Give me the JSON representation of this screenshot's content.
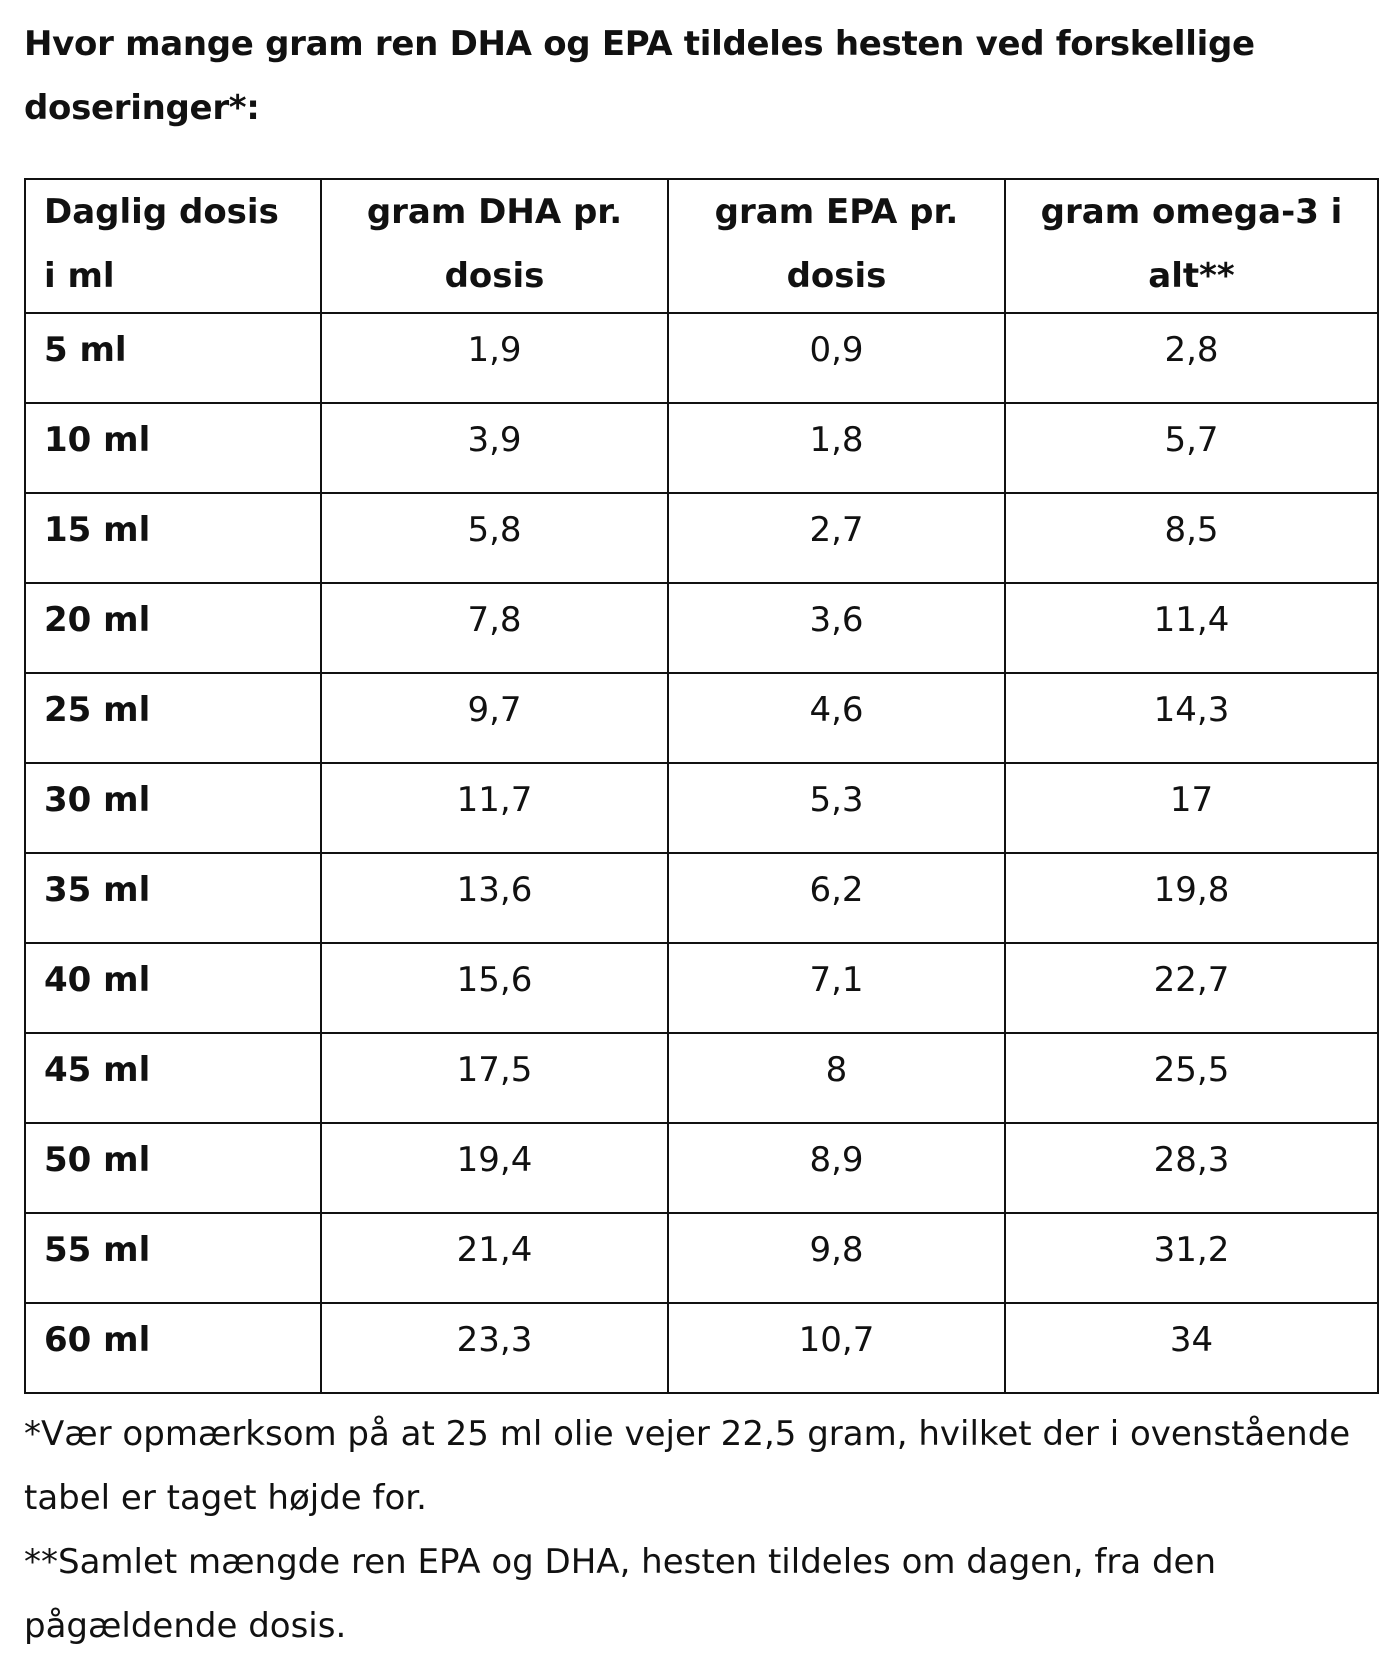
{
  "heading": "Hvor mange gram ren DHA og EPA tildeles hesten ved forskellige doseringer*:",
  "table": {
    "headers": [
      "Daglig dosis i ml",
      "gram DHA pr. dosis",
      "gram EPA pr. dosis",
      "gram omega-3 i alt**"
    ],
    "rows": [
      [
        "5 ml",
        "1,9",
        "0,9",
        "2,8"
      ],
      [
        "10 ml",
        "3,9",
        "1,8",
        "5,7"
      ],
      [
        "15 ml",
        "5,8",
        "2,7",
        "8,5"
      ],
      [
        "20 ml",
        "7,8",
        "3,6",
        "11,4"
      ],
      [
        "25 ml",
        "9,7",
        "4,6",
        "14,3"
      ],
      [
        "30 ml",
        "11,7",
        "5,3",
        "17"
      ],
      [
        "35 ml",
        "13,6",
        "6,2",
        "19,8"
      ],
      [
        "40 ml",
        "15,6",
        "7,1",
        "22,7"
      ],
      [
        "45 ml",
        "17,5",
        "8",
        "25,5"
      ],
      [
        "50 ml",
        "19,4",
        "8,9",
        "28,3"
      ],
      [
        "55 ml",
        "21,4",
        "9,8",
        "31,2"
      ],
      [
        "60 ml",
        "23,3",
        "10,7",
        "34"
      ]
    ]
  },
  "notes": [
    " *Vær opmærksom på at 25 ml olie vejer 22,5 gram, hvilket der i ovenstående tabel er taget højde for.",
    "**Samlet mængde ren EPA og DHA, hesten tildeles om dagen, fra den pågældende dosis."
  ]
}
